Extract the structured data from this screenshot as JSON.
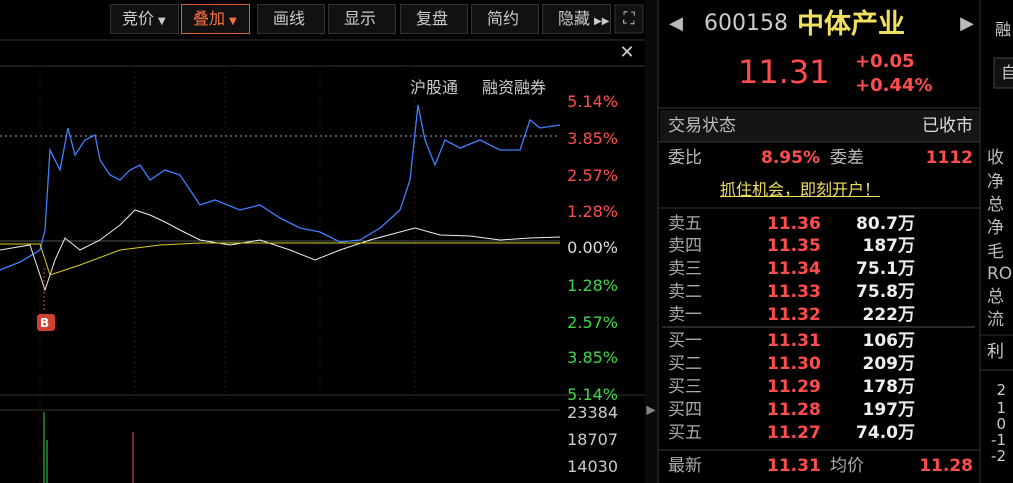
{
  "toolbar": [
    "竞价",
    "叠加",
    "画线",
    "显示",
    "复盘",
    "简约",
    "隐藏"
  ],
  "chart_links": [
    "沪股通",
    "融资融券"
  ],
  "price_axis": [
    "5.14%",
    "3.85%",
    "2.57%",
    "1.28%",
    "0.00%",
    "1.28%",
    "2.57%",
    "3.85%",
    "5.14%"
  ],
  "volume_axis": [
    "23384",
    "18707",
    "14030"
  ],
  "marker": "B",
  "stock": {
    "code": "600158",
    "name": "中体产业",
    "price": "11.31",
    "change": "+0.05",
    "change_pct": "+0.44%"
  },
  "status": {
    "label": "交易状态",
    "value": "已收市"
  },
  "ratio": {
    "label": "委比",
    "value": "8.95%",
    "diff_label": "委差",
    "diff": "1112"
  },
  "banner": "抓住机会，即刻开户！",
  "asks": [
    {
      "label": "卖五",
      "price": "11.36",
      "volume": "80.7万"
    },
    {
      "label": "卖四",
      "price": "11.35",
      "volume": "187万"
    },
    {
      "label": "卖三",
      "price": "11.34",
      "volume": "75.1万"
    },
    {
      "label": "卖二",
      "price": "11.33",
      "volume": "75.8万"
    },
    {
      "label": "卖一",
      "price": "11.32",
      "volume": "222万"
    }
  ],
  "bids": [
    {
      "label": "买一",
      "price": "11.31",
      "volume": "106万"
    },
    {
      "label": "买二",
      "price": "11.30",
      "volume": "209万"
    },
    {
      "label": "买三",
      "price": "11.29",
      "volume": "178万"
    },
    {
      "label": "买四",
      "price": "11.28",
      "volume": "197万"
    },
    {
      "label": "买五",
      "price": "11.27",
      "volume": "74.0万"
    }
  ],
  "footer": {
    "last_label": "最新",
    "last": "11.31",
    "avg_label": "均价",
    "avg": "11.28"
  },
  "side": {
    "top": "融",
    "button": "自",
    "items": [
      "收",
      "净",
      "总",
      "净",
      "毛",
      "RO",
      "总",
      "流"
    ],
    "tab": "利",
    "axis": [
      "2",
      "1",
      "0",
      "-1",
      "-2"
    ]
  }
}
